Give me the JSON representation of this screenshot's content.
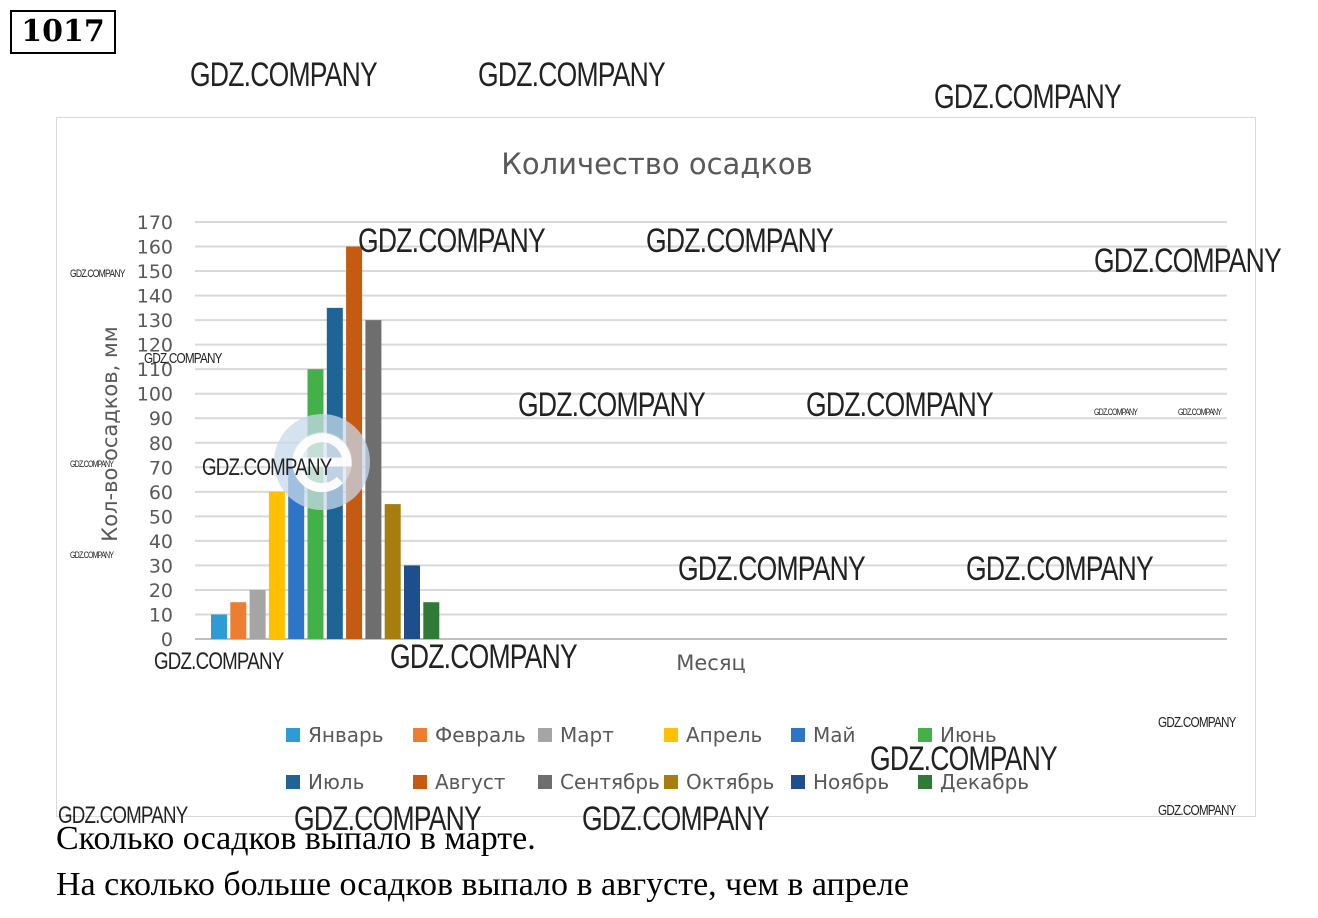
{
  "problem_number": "1017",
  "watermark_text": "GDZ.COMPANY",
  "questions": [
    "Сколько осадков выпало в марте.",
    "На сколько больше осадков выпало в августе, чем в апреле"
  ],
  "chart_data": {
    "type": "bar",
    "title": "Количество осадков",
    "xlabel": "Месяц",
    "ylabel": "Кол-во осадков, мм",
    "ylim": [
      0,
      170
    ],
    "yticks": [
      0,
      10,
      20,
      30,
      40,
      50,
      60,
      70,
      80,
      90,
      100,
      110,
      120,
      130,
      140,
      150,
      160,
      170
    ],
    "grid": true,
    "legend_position": "bottom",
    "series": [
      {
        "name": "Январь",
        "value": 10,
        "color": "#2e9bd6"
      },
      {
        "name": "Февраль",
        "value": 15,
        "color": "#ed7d31"
      },
      {
        "name": "Март",
        "value": 20,
        "color": "#a5a5a5"
      },
      {
        "name": "Апрель",
        "value": 60,
        "color": "#ffc000"
      },
      {
        "name": "Май",
        "value": 70,
        "color": "#2e75c8"
      },
      {
        "name": "Июнь",
        "value": 110,
        "color": "#43b048"
      },
      {
        "name": "Июль",
        "value": 135,
        "color": "#1f6496"
      },
      {
        "name": "Август",
        "value": 160,
        "color": "#c55a11"
      },
      {
        "name": "Сентябрь",
        "value": 130,
        "color": "#6e6e6e"
      },
      {
        "name": "Октябрь",
        "value": 55,
        "color": "#a87d10"
      },
      {
        "name": "Ноябрь",
        "value": 30,
        "color": "#1f4e8c"
      },
      {
        "name": "Декабрь",
        "value": 15,
        "color": "#2f7a36"
      }
    ]
  }
}
